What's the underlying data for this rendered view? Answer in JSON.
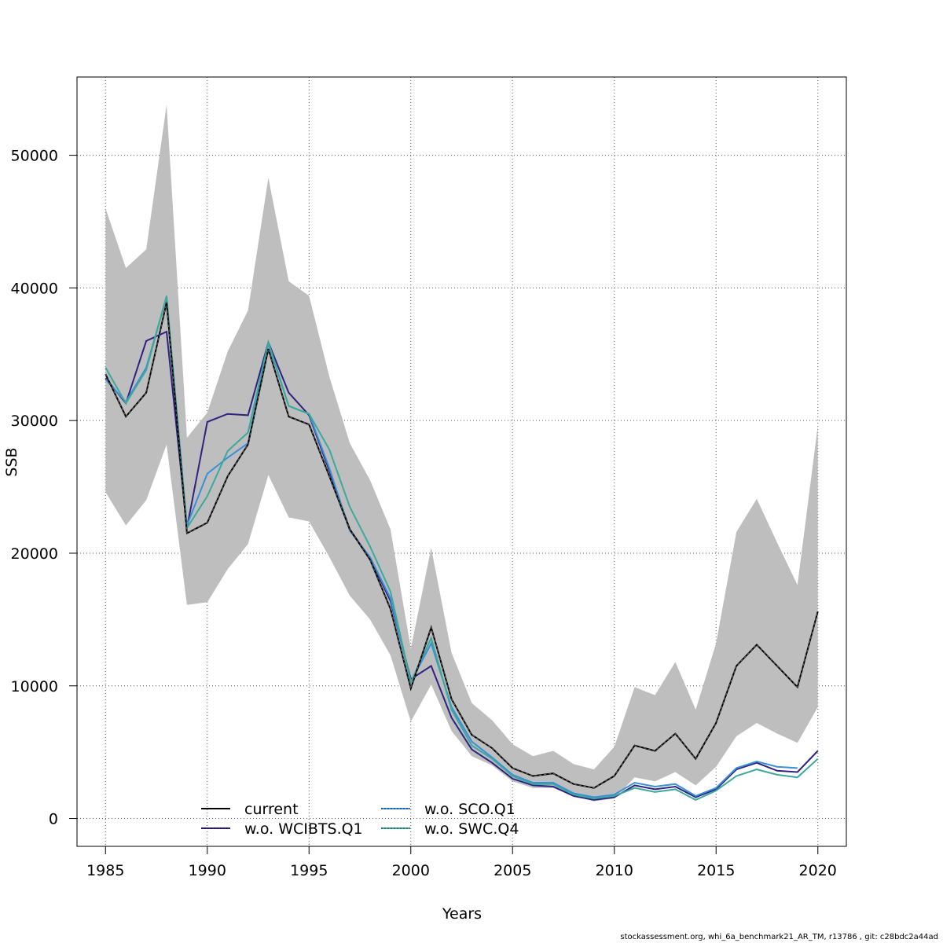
{
  "chart_data": {
    "type": "line",
    "title": "",
    "xlabel": "Years",
    "ylabel": "SSB",
    "xlim": [
      1983.6,
      2021.4
    ],
    "ylim": [
      -2100,
      55900
    ],
    "x_ticks": [
      1985,
      1990,
      1995,
      2000,
      2005,
      2010,
      2015,
      2020
    ],
    "y_ticks": [
      0,
      10000,
      20000,
      30000,
      40000,
      50000
    ],
    "grid": true,
    "legend_position": "bottom-center",
    "x": [
      1985,
      1986,
      1987,
      1988,
      1989,
      1990,
      1991,
      1992,
      1993,
      1994,
      1995,
      1996,
      1997,
      1998,
      1999,
      2000,
      2001,
      2002,
      2003,
      2004,
      2005,
      2006,
      2007,
      2008,
      2009,
      2010,
      2011,
      2012,
      2013,
      2014,
      2015,
      2016,
      2017,
      2018,
      2019,
      2020
    ],
    "band": {
      "color": "#bebebe",
      "upper": [
        46000,
        41500,
        42900,
        53800,
        28700,
        30600,
        35200,
        38300,
        48300,
        40500,
        39400,
        33300,
        28300,
        25500,
        21800,
        12800,
        20400,
        12500,
        8700,
        7400,
        5600,
        4700,
        5100,
        4100,
        3700,
        5400,
        9900,
        9300,
        11800,
        8200,
        13200,
        21600,
        24100,
        20800,
        17600,
        29600
      ],
      "lower": [
        24600,
        22100,
        24000,
        28200,
        16100,
        16300,
        18800,
        20700,
        25900,
        22700,
        22400,
        19700,
        16800,
        15000,
        12300,
        7300,
        10100,
        6600,
        4700,
        4000,
        2800,
        2300,
        2300,
        1700,
        1300,
        1500,
        3100,
        2800,
        3500,
        2500,
        3900,
        6200,
        7200,
        6400,
        5700,
        8400
      ]
    },
    "series": [
      {
        "name": "current",
        "color": "#000000",
        "dash": "",
        "values": [
          33500,
          30300,
          32100,
          38900,
          21500,
          22300,
          25800,
          28200,
          35400,
          30300,
          29700,
          25800,
          21800,
          19500,
          15800,
          9800,
          14400,
          9000,
          6300,
          5300,
          3800,
          3200,
          3400,
          2600,
          2300,
          3200,
          5500,
          5100,
          6400,
          4500,
          7200,
          11500,
          13100,
          11500,
          9900,
          15600
        ]
      },
      {
        "name": "w.o. WCIBTS.Q1",
        "color": "#2e2282",
        "dash": "",
        "values": [
          33200,
          31300,
          36000,
          36700,
          21900,
          29900,
          30500,
          30400,
          35900,
          32100,
          30400,
          26200,
          21800,
          19600,
          16400,
          10500,
          11500,
          7600,
          5200,
          4200,
          3000,
          2500,
          2400,
          1700,
          1400,
          1600,
          2500,
          2200,
          2400,
          1600,
          2200,
          3700,
          4200,
          3600,
          3500,
          5100
        ]
      },
      {
        "name": "w.o. SCO.Q1",
        "color": "#3a8fd8",
        "dash": "3,3",
        "values": [
          33100,
          31400,
          34000,
          39300,
          22100,
          26000,
          27200,
          28300,
          35800,
          31100,
          30500,
          26400,
          21700,
          19700,
          16600,
          10300,
          13200,
          8400,
          5800,
          4600,
          3300,
          2700,
          2700,
          1900,
          1600,
          1800,
          2700,
          2400,
          2600,
          1700,
          2300,
          3800,
          4300,
          3900,
          3800,
          null
        ]
      },
      {
        "name": "w.o. SWC.Q4",
        "color": "#3ba99c",
        "dash": "3,3",
        "values": [
          34000,
          31300,
          33800,
          39400,
          21900,
          24300,
          27700,
          29100,
          35900,
          31100,
          30500,
          27800,
          23500,
          20500,
          17100,
          10300,
          13600,
          8200,
          5500,
          4500,
          3200,
          2600,
          2600,
          1800,
          1500,
          1700,
          2300,
          2000,
          2200,
          1400,
          2100,
          3200,
          3700,
          3300,
          3100,
          4500
        ]
      }
    ]
  },
  "footer_text": "stockassessment.org, whi_6a_benchmark21_AR_TM, r13786 , git: c28bdc2a44ad"
}
